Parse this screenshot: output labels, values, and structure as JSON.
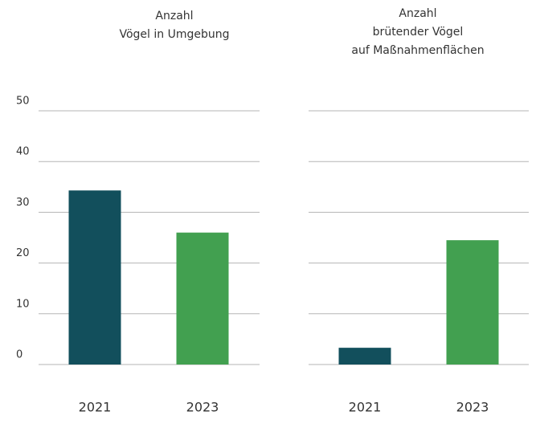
{
  "chart_data": [
    {
      "type": "bar",
      "title": [
        "Anzahl",
        "Vögel in Umgebung"
      ],
      "categories": [
        "2021",
        "2023"
      ],
      "values": [
        34.3,
        26
      ],
      "colors": [
        "#124f5c",
        "#42a050"
      ],
      "ylim": [
        0,
        50
      ],
      "yticks": [
        0,
        10,
        20,
        30,
        40,
        50
      ],
      "grid": true,
      "show_tick_labels": true
    },
    {
      "type": "bar",
      "title": [
        "Anzahl",
        "brütender Vögel",
        "auf Maßnahmenflächen"
      ],
      "categories": [
        "2021",
        "2023"
      ],
      "values": [
        3.3,
        24.5
      ],
      "colors": [
        "#124f5c",
        "#42a050"
      ],
      "ylim": [
        0,
        50
      ],
      "yticks": [
        0,
        10,
        20,
        30,
        40,
        50
      ],
      "grid": true,
      "show_tick_labels": false
    }
  ]
}
